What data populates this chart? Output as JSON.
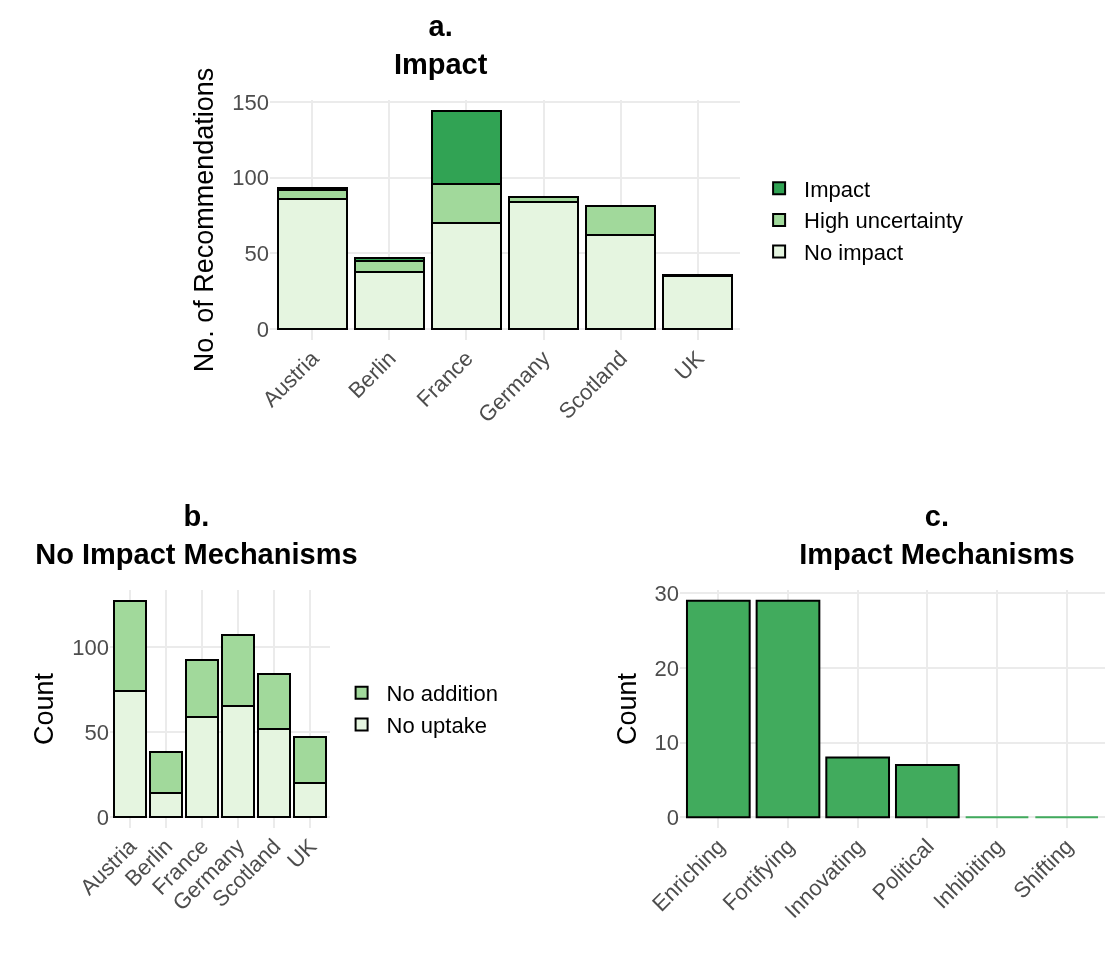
{
  "chart_data": [
    {
      "type": "bar",
      "title": "a.\nImpact",
      "ylabel": "No. of Recommendations",
      "categories": [
        "Austria",
        "Berlin",
        "France",
        "Germany",
        "Scotland",
        "UK"
      ],
      "stacked": true,
      "legend": "right",
      "grid": true,
      "ylim": [
        -7.2,
        151.2
      ],
      "yticks": [
        0,
        50,
        100,
        150
      ],
      "series": [
        {
          "name": "No impact",
          "color": "#e5f5e0",
          "values": [
            86,
            38,
            70,
            84,
            62,
            35
          ]
        },
        {
          "name": "High uncertainty",
          "color": "#a1d99b",
          "values": [
            6,
            7,
            26,
            3,
            19,
            1
          ]
        },
        {
          "name": "Impact",
          "color": "#31a354",
          "values": [
            1,
            2,
            48,
            null,
            null,
            null
          ]
        }
      ]
    },
    {
      "type": "bar",
      "title": "b.\nNo Impact Mechanisms",
      "ylabel": "Count",
      "categories": [
        "Austria",
        "Berlin",
        "France",
        "Germany",
        "Scotland",
        "UK"
      ],
      "stacked": true,
      "legend": "right",
      "grid": true,
      "ylim": [
        -6.35,
        133.35
      ],
      "yticks": [
        0,
        50,
        100
      ],
      "series": [
        {
          "name": "No uptake",
          "color": "#e5f5e0",
          "values": [
            74,
            14,
            59,
            65,
            52,
            20
          ]
        },
        {
          "name": "No addition",
          "color": "#a1d99b",
          "values": [
            53,
            24,
            33,
            42,
            32,
            27
          ]
        }
      ]
    },
    {
      "type": "bar",
      "title": "c.\nImpact Mechanisms",
      "ylabel": "Count",
      "categories": [
        "Enriching",
        "Fortifying",
        "Innovating",
        "Political",
        "Inhibiting",
        "Shifting"
      ],
      "grid": true,
      "ylim": [
        -1.45,
        30.45
      ],
      "yticks": [
        0,
        10,
        20,
        30
      ],
      "series": [
        {
          "color": "#41ab5d",
          "values": [
            29,
            29,
            8,
            7,
            0,
            0
          ]
        }
      ]
    }
  ]
}
